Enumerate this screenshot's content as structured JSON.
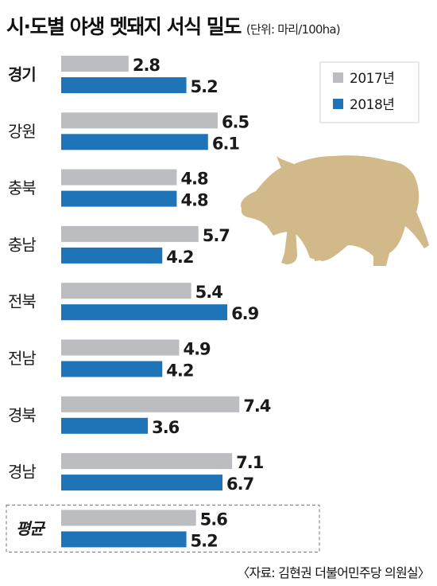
{
  "chart_data": {
    "type": "bar",
    "orientation": "horizontal",
    "title": "시·도별 야생 멧돼지 서식 밀도",
    "unit": "(단위: 마리/100ha)",
    "categories": [
      "경기",
      "강원",
      "충북",
      "충남",
      "전북",
      "전남",
      "경북",
      "경남",
      "평균"
    ],
    "bold_categories": [
      "경기"
    ],
    "boxed_categories": [
      "평균"
    ],
    "series": [
      {
        "name": "2017년",
        "color": "#bcbdc0",
        "values": [
          2.8,
          6.5,
          4.8,
          5.7,
          5.4,
          4.9,
          7.4,
          7.1,
          5.6
        ]
      },
      {
        "name": "2018년",
        "color": "#1f74b8",
        "values": [
          5.2,
          6.1,
          4.8,
          4.2,
          6.9,
          4.2,
          3.6,
          6.7,
          5.2
        ]
      }
    ],
    "legend_position": "top-right",
    "grid": false
  },
  "source": "〈자료: 김현권 더불어민주당 의원실〉",
  "colors": {
    "boar": "#d2b98a"
  },
  "icon": "wild-boar-icon"
}
